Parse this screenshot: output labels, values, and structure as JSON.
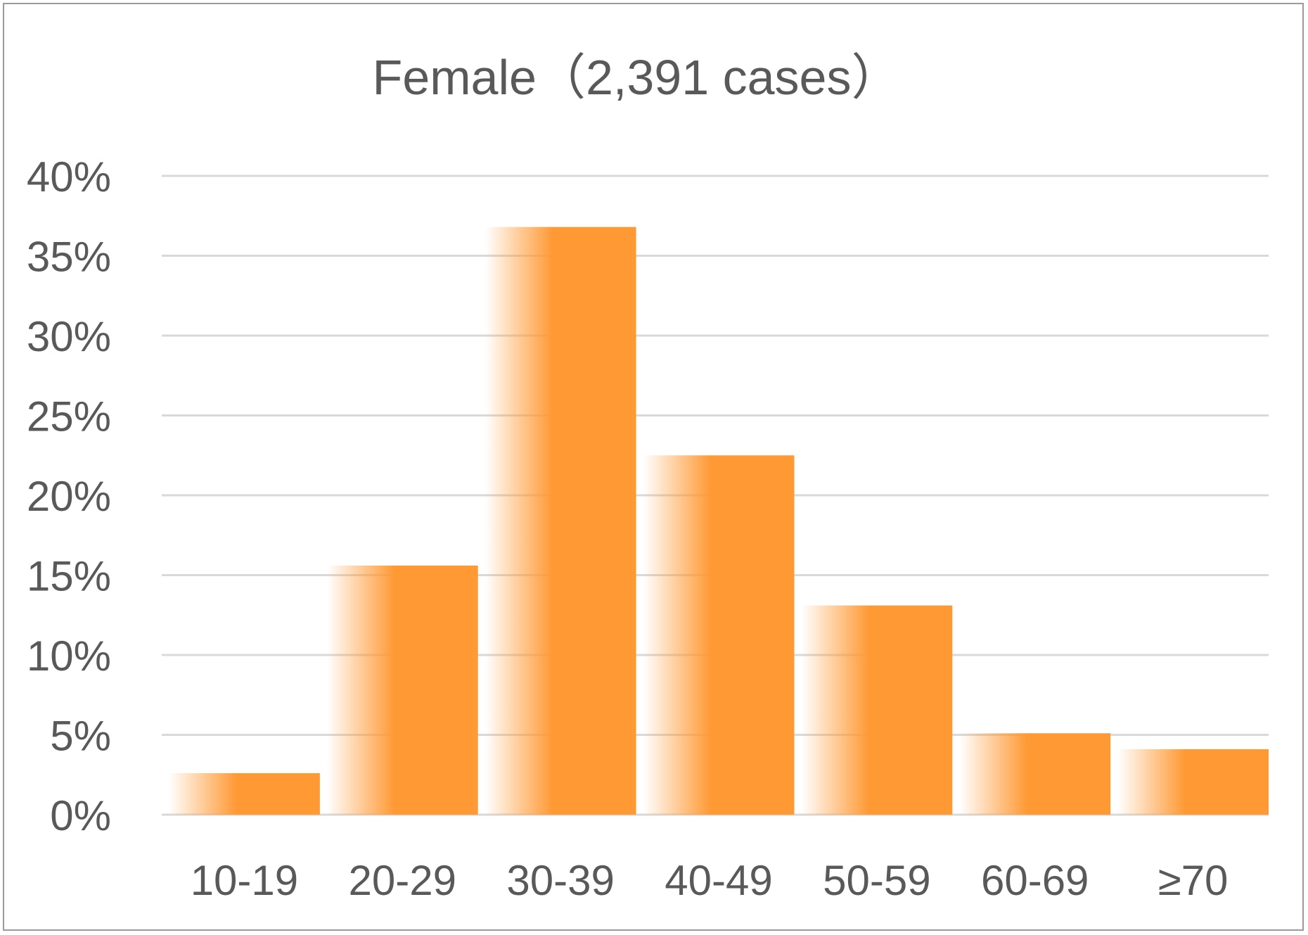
{
  "chart_data": {
    "type": "bar",
    "title": "Female（2,391 cases）",
    "categories": [
      "10-19",
      "20-29",
      "30-39",
      "40-49",
      "50-59",
      "60-69",
      "≥70"
    ],
    "values": [
      2.6,
      15.6,
      36.8,
      22.5,
      13.1,
      5.1,
      4.1
    ],
    "ylim": [
      0,
      40
    ],
    "yticks": [
      "0%",
      "5%",
      "10%",
      "15%",
      "20%",
      "25%",
      "30%",
      "35%",
      "40%"
    ],
    "xlabel": "",
    "ylabel": "",
    "grid": true,
    "bar_color": "#FF9933",
    "gridline_color": "#D9D9D9"
  }
}
